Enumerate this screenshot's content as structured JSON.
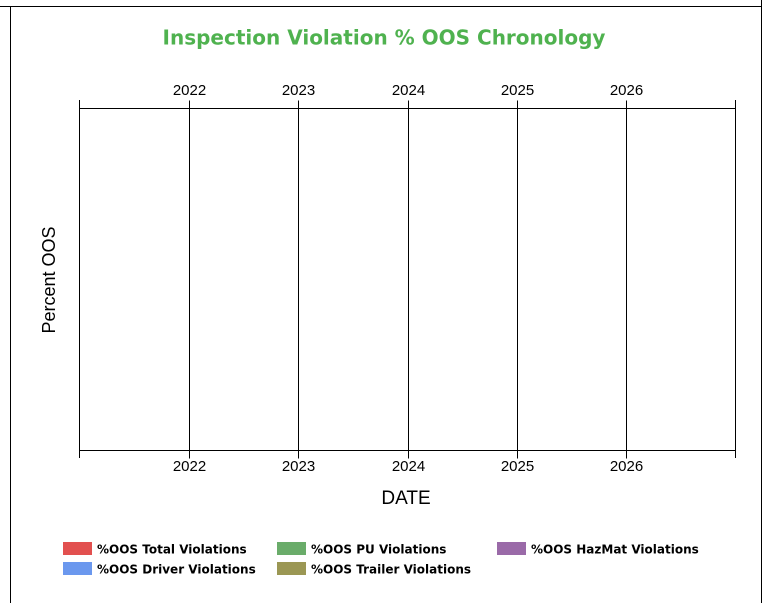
{
  "chart_data": {
    "type": "line",
    "title": "Inspection Violation % OOS Chronology",
    "xlabel": "DATE",
    "ylabel": "Percent OOS",
    "x": [],
    "xlim": [
      2021,
      2027
    ],
    "xticks": [
      2022,
      2023,
      2024,
      2025,
      2026
    ],
    "grid": true,
    "series": [
      {
        "name": "%OOS Total Violations",
        "color": "#e2504f",
        "values": []
      },
      {
        "name": "%OOS PU Violations",
        "color": "#6aac6a",
        "values": []
      },
      {
        "name": "%OOS HazMat Violations",
        "color": "#9a6aa8",
        "values": []
      },
      {
        "name": "%OOS Driver Violations",
        "color": "#6b98ee",
        "values": []
      },
      {
        "name": "%OOS Trailer Violations",
        "color": "#9b9754",
        "values": []
      }
    ]
  }
}
